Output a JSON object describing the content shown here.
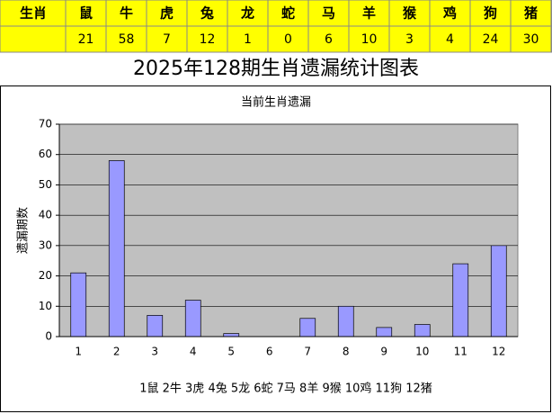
{
  "table": {
    "header": "生肖",
    "animals": [
      "鼠",
      "牛",
      "虎",
      "兔",
      "龙",
      "蛇",
      "马",
      "羊",
      "猴",
      "鸡",
      "狗",
      "猪"
    ]
  },
  "page_title": "2025年128期生肖遗漏统计图表",
  "chart_data": {
    "type": "bar",
    "title": "当前生肖遗漏",
    "ylabel": "遗漏期数",
    "categories": [
      "1",
      "2",
      "3",
      "4",
      "5",
      "6",
      "7",
      "8",
      "9",
      "10",
      "11",
      "12"
    ],
    "values": [
      21,
      58,
      7,
      12,
      1,
      0,
      6,
      10,
      3,
      4,
      24,
      30
    ],
    "color": "#9999ff",
    "ylim": [
      0,
      70
    ],
    "yticks": [
      0,
      10,
      20,
      30,
      40,
      50,
      60,
      70
    ],
    "grid": true,
    "caption": "1鼠 2牛 3虎 4兔 5龙 6蛇 7马 8羊 9猴 10鸡 11狗 12猪"
  }
}
